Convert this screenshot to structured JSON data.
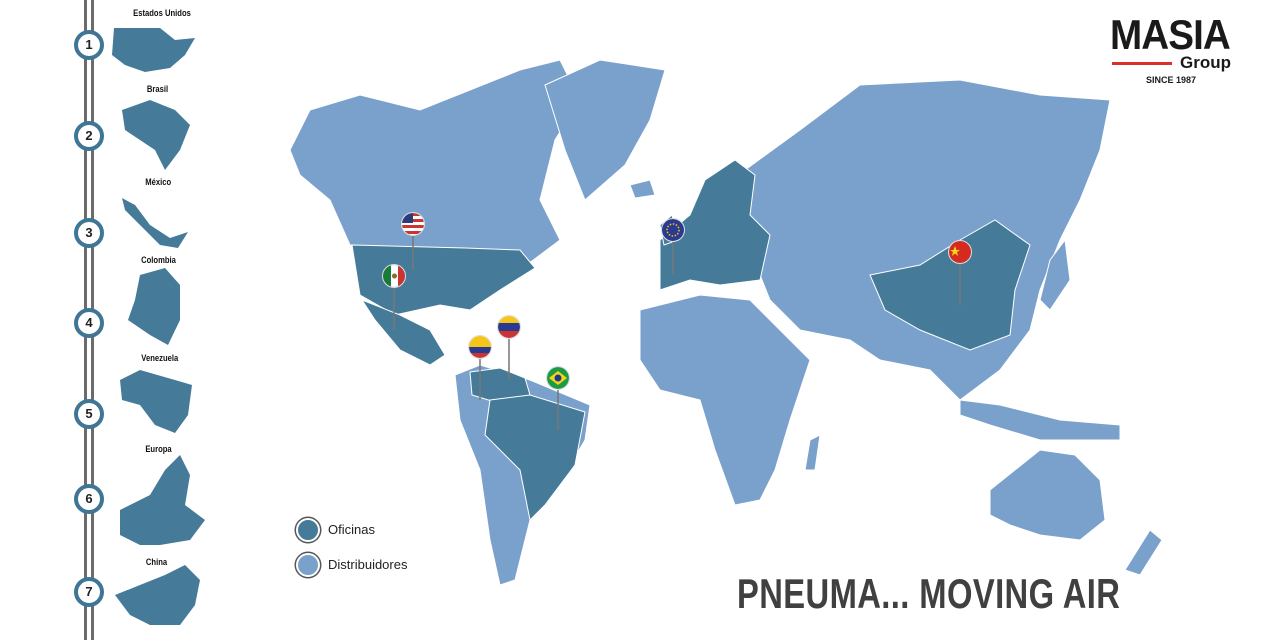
{
  "colors": {
    "office": "#457b99",
    "distributor": "#7aa1cc",
    "rail": "#6b6b6b",
    "step_ring": "#3f7595",
    "tagline": "#404040",
    "logo_accent": "#d9302b"
  },
  "logo": {
    "name": "MASIA",
    "group": "Group",
    "since": "SINCE 1987"
  },
  "steps": [
    {
      "number": "1",
      "country": "Estados Unidos"
    },
    {
      "number": "2",
      "country": "Brasil"
    },
    {
      "number": "3",
      "country": "México"
    },
    {
      "number": "4",
      "country": "Colombia"
    },
    {
      "number": "5",
      "country": "Venezuela"
    },
    {
      "number": "6",
      "country": "Europa"
    },
    {
      "number": "7",
      "country": "China"
    }
  ],
  "legend": [
    {
      "label": "Oficinas",
      "type": "office"
    },
    {
      "label": "Distribuidores",
      "type": "distributor"
    }
  ],
  "pins": [
    {
      "flag": "usa-flag"
    },
    {
      "flag": "mexico-flag"
    },
    {
      "flag": "venezuela-flag"
    },
    {
      "flag": "colombia-flag"
    },
    {
      "flag": "brazil-flag"
    },
    {
      "flag": "eu-flag"
    },
    {
      "flag": "china-flag"
    }
  ],
  "tagline": "PNEUMA... MOVING AIR"
}
